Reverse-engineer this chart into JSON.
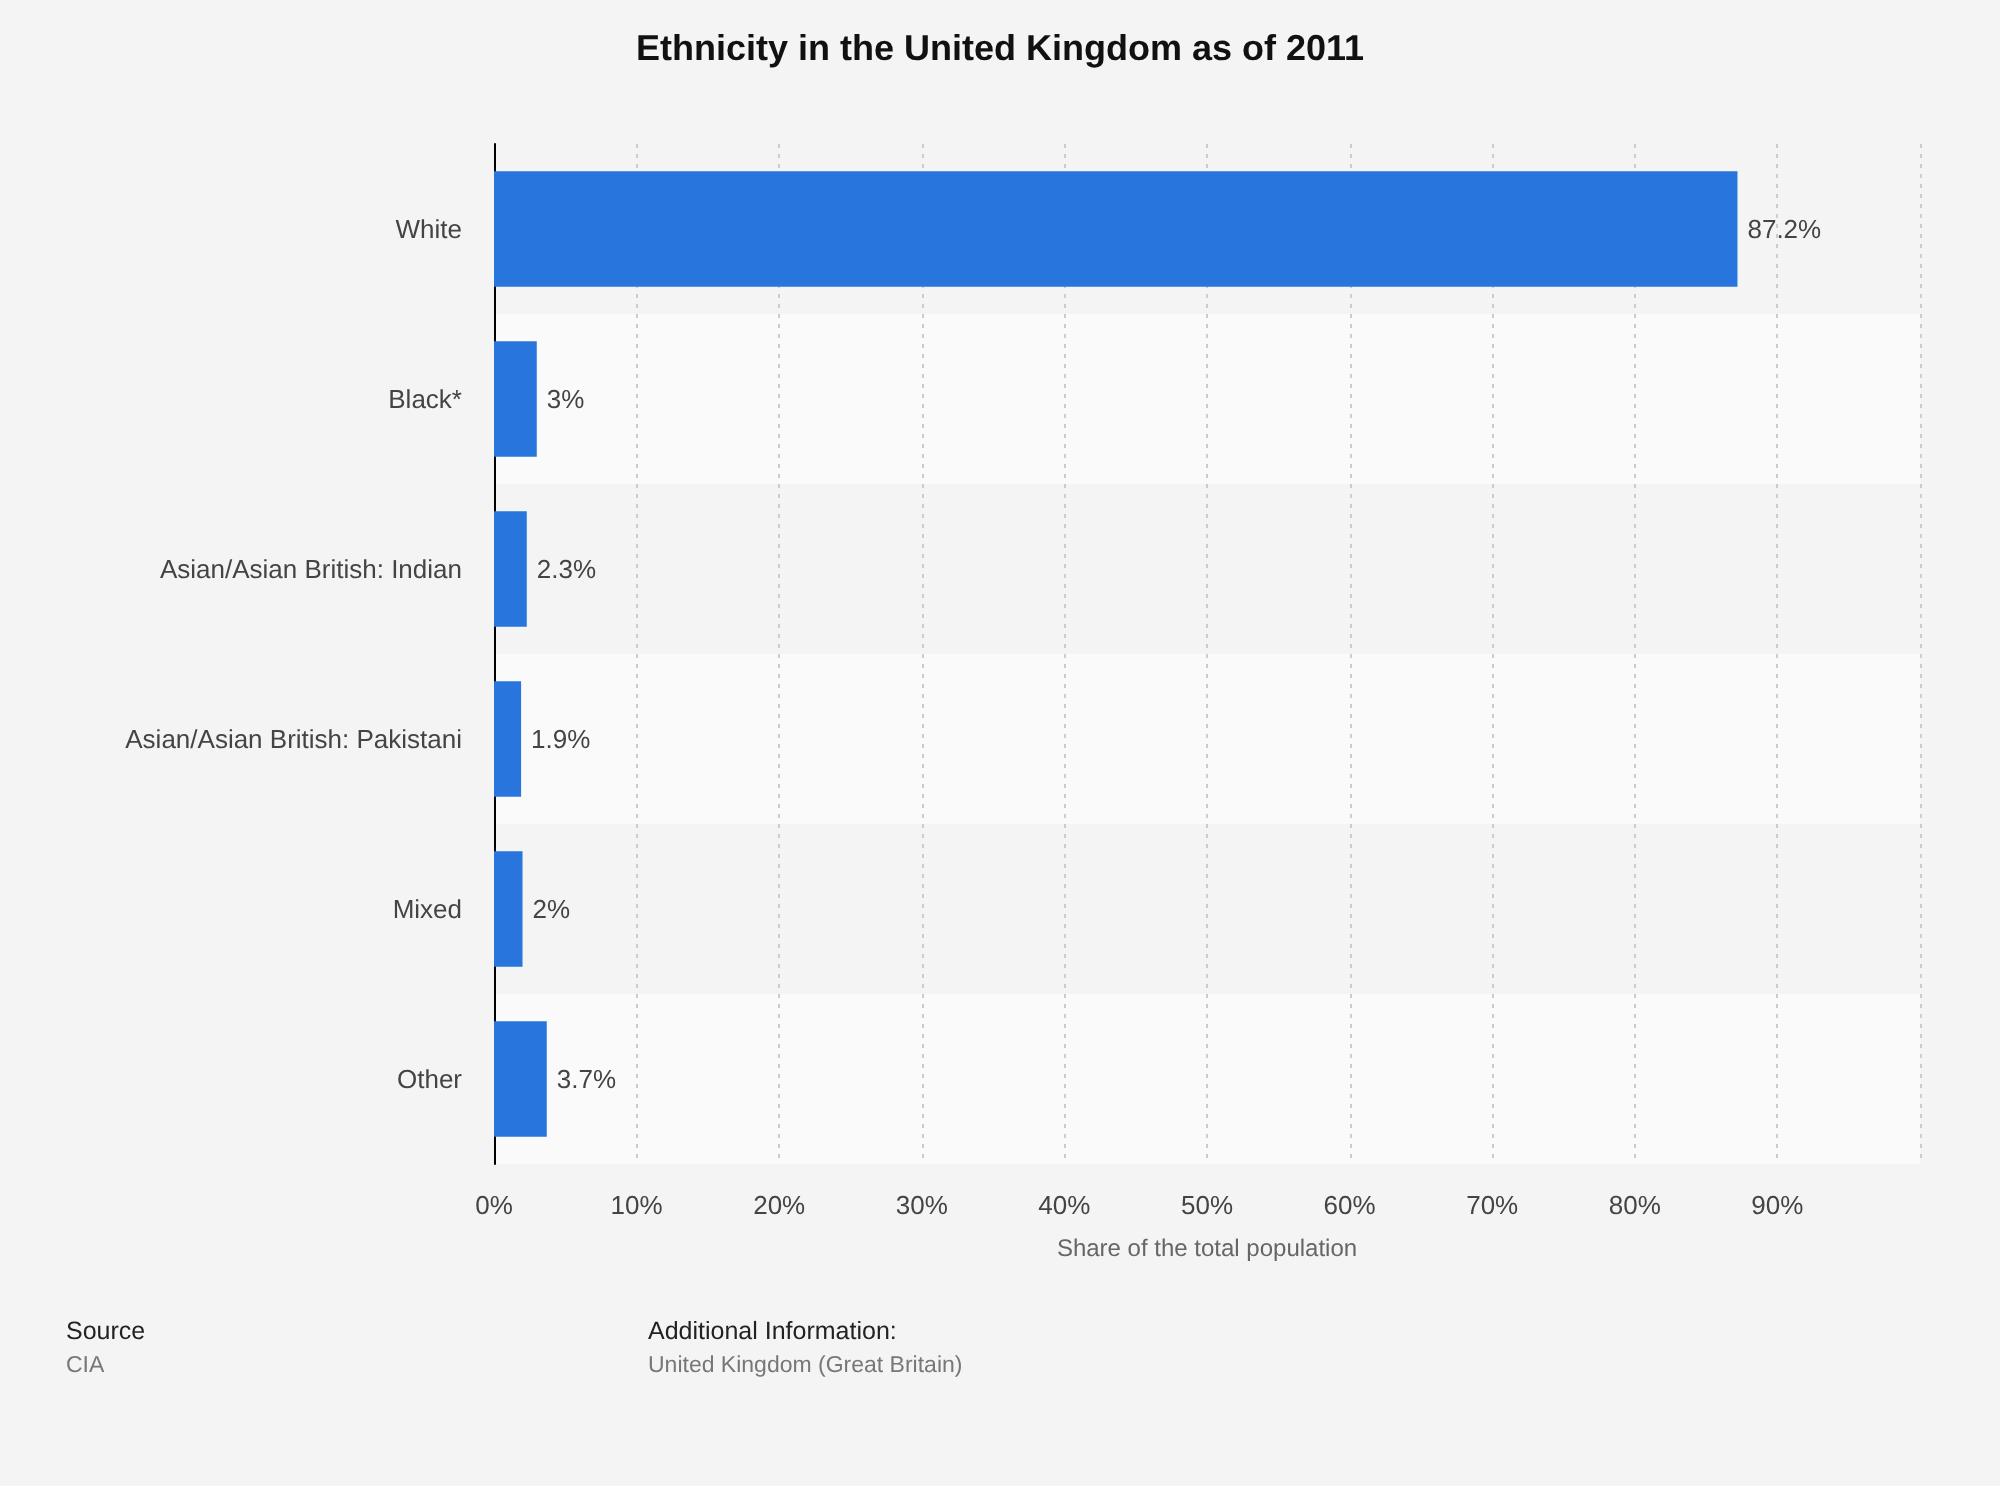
{
  "chart_data": {
    "type": "bar",
    "orientation": "horizontal",
    "title": "Ethnicity in the United Kingdom as of 2011",
    "xlabel": "Share of the total population",
    "categories": [
      "White",
      "Black*",
      "Asian/Asian British: Indian",
      "Asian/Asian British: Pakistani",
      "Mixed",
      "Other"
    ],
    "values": [
      87.2,
      3,
      2.3,
      1.9,
      2,
      3.7
    ],
    "value_labels": [
      "87.2%",
      "3%",
      "2.3%",
      "1.9%",
      "2%",
      "3.7%"
    ],
    "color": "#2876dd",
    "xlim": [
      0,
      100
    ],
    "xticks": [
      {
        "value": 0,
        "label": "0%"
      },
      {
        "value": 10,
        "label": "10%"
      },
      {
        "value": 20,
        "label": "20%"
      },
      {
        "value": 30,
        "label": "30%"
      },
      {
        "value": 40,
        "label": "40%"
      },
      {
        "value": 50,
        "label": "50%"
      },
      {
        "value": 60,
        "label": "60%"
      },
      {
        "value": 70,
        "label": "70%"
      },
      {
        "value": 80,
        "label": "80%"
      },
      {
        "value": 90,
        "label": "90%"
      },
      {
        "value": 100,
        "label": null
      }
    ],
    "grid": "x",
    "annotations": [
      "Source",
      "CIA",
      "Additional Information:",
      "United Kingdom (Great Britain)"
    ]
  }
}
